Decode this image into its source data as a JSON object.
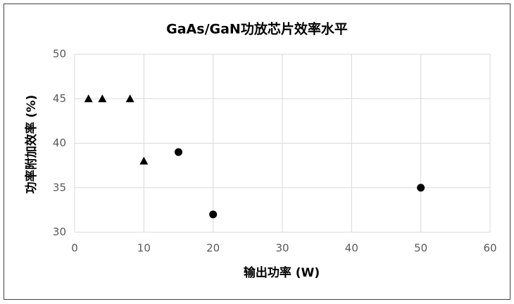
{
  "chart_data": {
    "type": "scatter",
    "title": "GaAs/GaN功放芯片效率水平",
    "x_label": "输出功率 (W)",
    "y_label": "功率附加效率 (%)",
    "series": [
      {
        "color": "#000000",
        "marker": "triangle",
        "x": [
          2,
          4,
          8,
          10
        ],
        "values": [
          45,
          45,
          45,
          38
        ]
      },
      {
        "color": "#000000",
        "marker": "circle",
        "x": [
          15,
          20,
          50
        ],
        "values": [
          39,
          32,
          35
        ]
      }
    ],
    "xlim": [
      0,
      60
    ],
    "xticks": [
      0,
      10,
      20,
      30,
      40,
      50,
      60
    ],
    "ylim": [
      30,
      50
    ],
    "yticks": [
      30,
      35,
      40,
      45,
      50
    ],
    "grid": true
  }
}
